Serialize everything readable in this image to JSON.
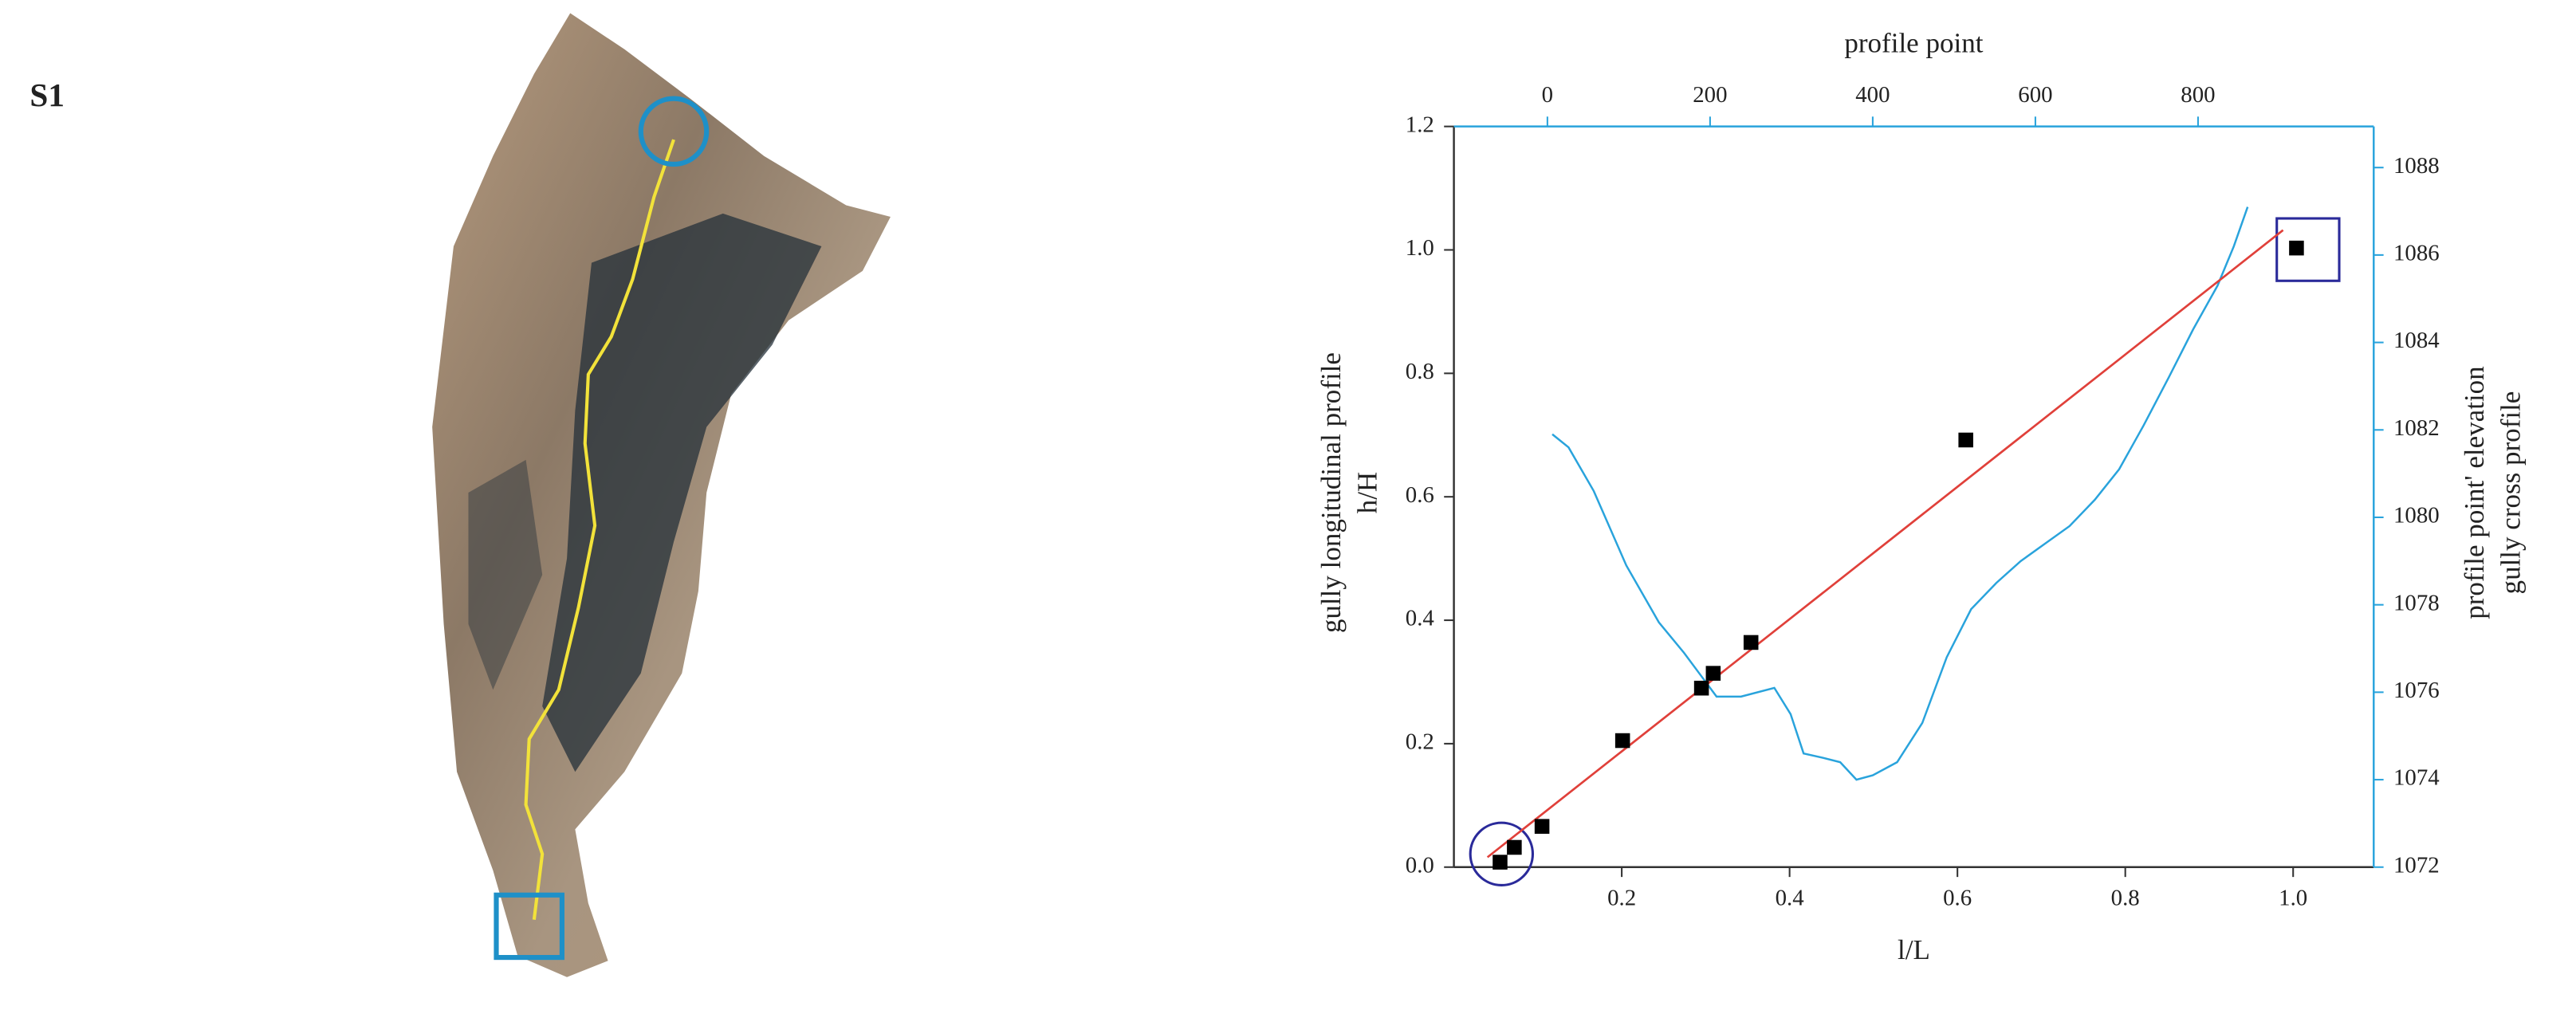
{
  "panel_label": "S1",
  "chart_data": {
    "type": "scatter",
    "x_label": "l/L",
    "y_label": [
      "gully longitudinal profile",
      "h/H"
    ],
    "x2_label": "profile point",
    "y2_label": [
      "profile point' elevation",
      "gully cross profile"
    ],
    "x": [
      0.055,
      0.072,
      0.105,
      0.201,
      0.295,
      0.309,
      0.354,
      0.61,
      1.004
    ],
    "values": [
      0.008,
      0.032,
      0.066,
      0.205,
      0.29,
      0.314,
      0.364,
      0.692,
      1.003
    ],
    "color": "#000000",
    "fit_line": {
      "x": [
        0.04,
        0.988
      ],
      "values": [
        0.016,
        1.032
      ],
      "color": "#e0403a"
    },
    "profile": {
      "axis": "y2",
      "color": "#29a3dc",
      "x": [
        6,
        26,
        57,
        97,
        137,
        168,
        188,
        208,
        238,
        279,
        299,
        315,
        339,
        360,
        380,
        400,
        430,
        461,
        491,
        521,
        552,
        582,
        612,
        642,
        673,
        703,
        733,
        764,
        794,
        824,
        844,
        861
      ],
      "values": [
        1081.9,
        1081.6,
        1080.6,
        1078.9,
        1077.6,
        1076.9,
        1076.4,
        1075.9,
        1075.9,
        1076.1,
        1075.5,
        1074.6,
        1074.5,
        1074.4,
        1074.0,
        1074.1,
        1074.4,
        1075.3,
        1076.8,
        1077.9,
        1078.5,
        1079.0,
        1079.4,
        1079.8,
        1080.4,
        1081.1,
        1082.1,
        1083.2,
        1084.3,
        1085.3,
        1086.2,
        1087.1
      ]
    },
    "xlim": [
      0,
      1.096
    ],
    "xticks": [
      0.2,
      0.4,
      0.6,
      0.8,
      {
        "value": 1,
        "label": "1.0"
      }
    ],
    "ylim": [
      0,
      1.2
    ],
    "yticks": [
      {
        "value": 0,
        "label": "0.0"
      },
      0.2,
      0.4,
      0.6,
      0.8,
      {
        "value": 1,
        "label": "1.0"
      },
      1.2
    ],
    "x2lim": [
      -115,
      1016
    ],
    "x2ticks": [
      0,
      200,
      400,
      600,
      800
    ],
    "y2lim": [
      1072,
      1088.94
    ],
    "y2ticks": [
      1072,
      1074,
      1076,
      1078,
      1080,
      1082,
      1084,
      1086,
      1088
    ]
  }
}
